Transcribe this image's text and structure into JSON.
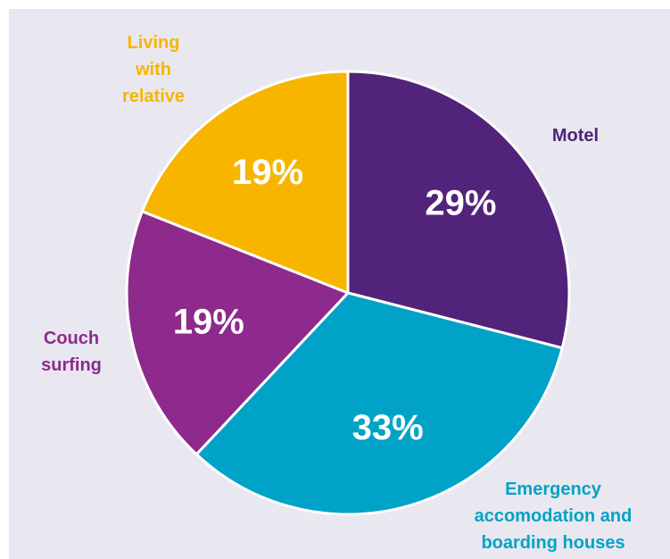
{
  "chart_data": {
    "type": "pie",
    "categories": [
      [
        "Motel"
      ],
      [
        "Emergency",
        "accomodation and",
        "boarding houses"
      ],
      [
        "Couch",
        "surfing"
      ],
      [
        "Living",
        "with",
        "relative"
      ]
    ],
    "values": [
      29,
      33,
      19,
      19
    ],
    "value_labels": [
      "29%",
      "33%",
      "19%",
      "19%"
    ],
    "colors": [
      "#51237a",
      "#00a3c7",
      "#8e2a8c",
      "#f7b500"
    ]
  }
}
